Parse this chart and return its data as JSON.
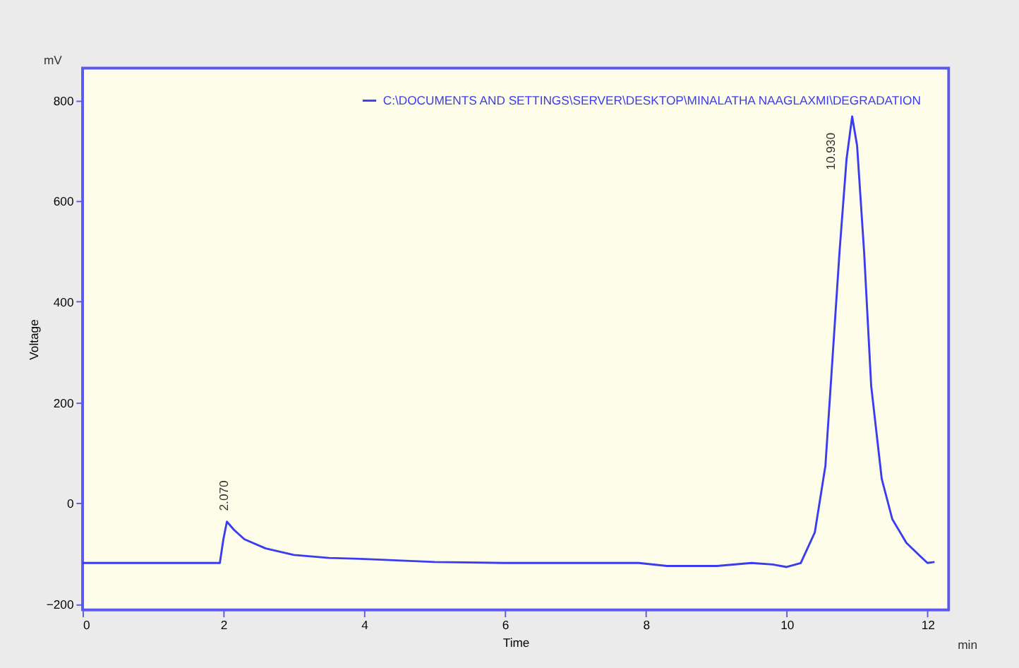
{
  "chart_data": {
    "type": "line",
    "xlabel": "Time",
    "ylabel": "Voltage",
    "annotations": [
      {
        "text": "2.070",
        "x": 2.05,
        "y": -37
      },
      {
        "text": "10.930",
        "x": 10.93,
        "y": 768
      },
      "mV",
      "min"
    ],
    "x": [
      0,
      1.5,
      1.95,
      2.0,
      2.05,
      2.15,
      2.3,
      2.6,
      3.0,
      3.5,
      4.0,
      5,
      6,
      7,
      7.9,
      8.3,
      9,
      9.5,
      9.8,
      10.0,
      10.2,
      10.4,
      10.55,
      10.65,
      10.75,
      10.85,
      10.93,
      11.0,
      11.1,
      11.2,
      11.35,
      11.5,
      11.7,
      11.9,
      12.0,
      12.1
    ],
    "series": [
      {
        "name": "C:\\DOCUMENTS AND SETTINGS\\SERVER\\DESKTOP\\MINALATHA NAAGLAXMI\\DEGRADATION",
        "color": "#3b3bf0",
        "values": [
          -119,
          -119,
          -119,
          -72,
          -37,
          -53,
          -72,
          -90,
          -103,
          -109,
          -111,
          -117,
          -119,
          -119,
          -119,
          -125,
          -125,
          -119,
          -122,
          -127,
          -119,
          -58,
          74,
          286,
          498,
          683,
          768,
          710,
          498,
          233,
          48,
          -32,
          -79,
          -106,
          -119,
          -117
        ]
      }
    ],
    "xlim": [
      0,
      12.3
    ],
    "ylim": [
      -212,
      864
    ],
    "xticks": [
      0,
      2,
      4,
      6,
      8,
      10,
      12
    ],
    "yticks": [
      -200,
      0,
      200,
      400,
      600,
      800
    ],
    "grid": false,
    "legend": "top right",
    "marker": "none",
    "line_style": "solid"
  }
}
